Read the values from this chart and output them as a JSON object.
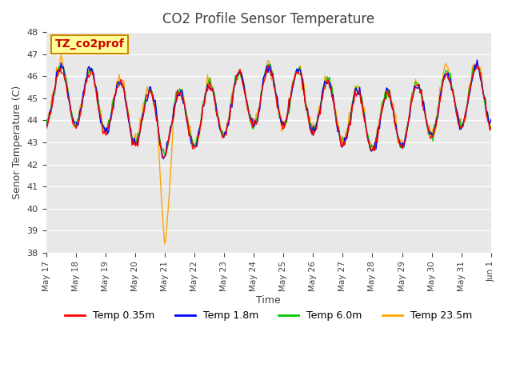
{
  "title": "CO2 Profile Sensor Temperature",
  "ylabel": "Senor Temperature (C)",
  "xlabel": "Time",
  "annotation": "TZ_co2prof",
  "ylim": [
    38.0,
    48.0
  ],
  "yticks": [
    38.0,
    39.0,
    40.0,
    41.0,
    42.0,
    43.0,
    44.0,
    45.0,
    46.0,
    47.0,
    48.0
  ],
  "series_colors": [
    "#ff0000",
    "#0000ff",
    "#00cc00",
    "#ffa500"
  ],
  "series_labels": [
    "Temp 0.35m",
    "Temp 1.8m",
    "Temp 6.0m",
    "Temp 23.5m"
  ],
  "bg_color": "#e8e8e8",
  "annotation_bg": "#ffff99",
  "annotation_color": "#cc0000",
  "annotation_border": "#cc8800",
  "title_color": "#404040",
  "tick_color": "#404040",
  "grid_color": "#ffffff",
  "spike_value": 38.2,
  "base_temp": 44.5,
  "amplitude": 1.3,
  "seed": 42,
  "x_tick_labels": [
    "May 17",
    "May 18",
    "May 19",
    "May 20",
    "May 21",
    "May 22",
    "May 23",
    "May 24",
    "May 25",
    "May 26",
    "May 27",
    "May 28",
    "May 29",
    "May 30",
    "May 31",
    "Jun 1"
  ]
}
